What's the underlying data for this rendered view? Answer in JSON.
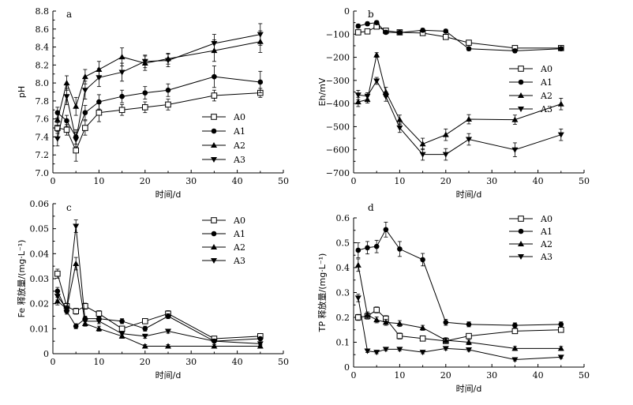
{
  "chart_data": [
    {
      "type": "line",
      "panel": "a",
      "xlabel": "时间/d",
      "ylabel": "pH",
      "xlim": [
        0,
        50
      ],
      "ylim": [
        7.0,
        8.8
      ],
      "xticks": [
        0,
        10,
        20,
        30,
        40,
        50
      ],
      "yticks": [
        7.0,
        7.2,
        7.4,
        7.6,
        7.8,
        8.0,
        8.2,
        8.4,
        8.6,
        8.8
      ],
      "ytick_labels": [
        "7.0",
        "7.2",
        "7.4",
        "7.6",
        "7.8",
        "8.0",
        "8.2",
        "8.4",
        "8.6",
        "8.8"
      ],
      "legend_position": "lower-right",
      "series": [
        {
          "name": "A0",
          "marker": "square-open",
          "x": [
            1,
            3,
            5,
            7,
            10,
            15,
            20,
            25,
            35,
            45
          ],
          "y": [
            7.5,
            7.48,
            7.25,
            7.5,
            7.67,
            7.7,
            7.73,
            7.76,
            7.86,
            7.89
          ],
          "err": [
            0.06,
            0.06,
            0.12,
            0.08,
            0.1,
            0.06,
            0.06,
            0.06,
            0.06,
            0.05
          ]
        },
        {
          "name": "A1",
          "marker": "circle",
          "x": [
            1,
            3,
            5,
            7,
            10,
            15,
            20,
            25,
            35,
            45
          ],
          "y": [
            7.67,
            7.58,
            7.4,
            7.67,
            7.79,
            7.85,
            7.89,
            7.92,
            8.07,
            8.01
          ],
          "err": [
            0.06,
            0.06,
            0.08,
            0.08,
            0.08,
            0.07,
            0.07,
            0.07,
            0.12,
            0.12
          ]
        },
        {
          "name": "A2",
          "marker": "triangle-up",
          "x": [
            1,
            3,
            5,
            7,
            10,
            15,
            20,
            25,
            35,
            45
          ],
          "y": [
            7.59,
            8.0,
            7.74,
            8.07,
            8.15,
            8.29,
            8.22,
            8.27,
            8.36,
            8.46
          ],
          "err": [
            0.07,
            0.08,
            0.1,
            0.08,
            0.09,
            0.1,
            0.08,
            0.06,
            0.12,
            0.12
          ]
        },
        {
          "name": "A3",
          "marker": "triangle-down",
          "x": [
            1,
            3,
            5,
            7,
            10,
            15,
            20,
            25,
            35,
            45
          ],
          "y": [
            7.38,
            7.85,
            7.37,
            7.92,
            8.06,
            8.12,
            8.24,
            8.25,
            8.44,
            8.54
          ],
          "err": [
            0.08,
            0.09,
            0.08,
            0.1,
            0.1,
            0.1,
            0.07,
            0.07,
            0.1,
            0.12
          ]
        }
      ]
    },
    {
      "type": "line",
      "panel": "b",
      "xlabel": "时间/d",
      "ylabel": "Eh/mV",
      "xlim": [
        0,
        50
      ],
      "ylim": [
        -700,
        0
      ],
      "xticks": [
        0,
        10,
        20,
        30,
        40,
        50
      ],
      "yticks": [
        0,
        -100,
        -200,
        -300,
        -400,
        -500,
        -600,
        -700
      ],
      "ytick_labels": [
        "0",
        "−100",
        "−200",
        "−300",
        "−400",
        "−500",
        "−600",
        "−700"
      ],
      "legend_position": "center-right",
      "series": [
        {
          "name": "A0",
          "marker": "square-open",
          "x": [
            1,
            3,
            5,
            7,
            10,
            15,
            20,
            25,
            35,
            45
          ],
          "y": [
            -92,
            -88,
            -67,
            -85,
            -92,
            -95,
            -112,
            -137,
            -160,
            -160
          ],
          "err": [
            8,
            8,
            10,
            8,
            8,
            8,
            8,
            8,
            8,
            8
          ]
        },
        {
          "name": "A1",
          "marker": "circle",
          "x": [
            1,
            3,
            5,
            7,
            10,
            15,
            20,
            25,
            35,
            45
          ],
          "y": [
            -65,
            -55,
            -50,
            -92,
            -93,
            -83,
            -87,
            -163,
            -172,
            -163
          ],
          "err": [
            8,
            8,
            8,
            8,
            8,
            8,
            8,
            8,
            8,
            8
          ]
        },
        {
          "name": "A2",
          "marker": "triangle-up",
          "x": [
            1,
            3,
            5,
            7,
            10,
            15,
            20,
            25,
            35,
            45
          ],
          "y": [
            -393,
            -383,
            -190,
            -350,
            -470,
            -575,
            -535,
            -468,
            -470,
            -402
          ],
          "err": [
            20,
            15,
            10,
            20,
            20,
            25,
            25,
            20,
            20,
            25
          ]
        },
        {
          "name": "A3",
          "marker": "triangle-down",
          "x": [
            1,
            3,
            5,
            7,
            10,
            15,
            20,
            25,
            35,
            45
          ],
          "y": [
            -363,
            -368,
            -302,
            -370,
            -505,
            -620,
            -620,
            -555,
            -600,
            -535
          ],
          "err": [
            20,
            15,
            15,
            20,
            20,
            25,
            25,
            25,
            30,
            25
          ]
        }
      ]
    },
    {
      "type": "line",
      "panel": "c",
      "xlabel": "时间/d",
      "ylabel": "Fe 释放量/(mg·L⁻¹)",
      "xlim": [
        0,
        50
      ],
      "ylim": [
        0,
        0.06
      ],
      "xticks": [
        0,
        10,
        20,
        30,
        40,
        50
      ],
      "yticks": [
        0,
        0.01,
        0.02,
        0.03,
        0.04,
        0.05,
        0.06
      ],
      "ytick_labels": [
        "0",
        "0.01",
        "0.02",
        "0.03",
        "0.04",
        "0.05",
        "0.06"
      ],
      "legend_position": "top-right",
      "series": [
        {
          "name": "A0",
          "marker": "square-open",
          "x": [
            1,
            3,
            5,
            7,
            10,
            15,
            20,
            25,
            35,
            45
          ],
          "y": [
            0.032,
            0.019,
            0.017,
            0.019,
            0.016,
            0.01,
            0.013,
            0.016,
            0.006,
            0.007
          ],
          "err": [
            0.0018,
            0.0012,
            0.0012,
            0.0012,
            0.0012,
            0.0008,
            0.0008,
            0.0012,
            0.0006,
            0.0006
          ]
        },
        {
          "name": "A1",
          "marker": "circle",
          "x": [
            1,
            3,
            5,
            7,
            10,
            15,
            20,
            25,
            35,
            45
          ],
          "y": [
            0.025,
            0.017,
            0.011,
            0.014,
            0.014,
            0.013,
            0.01,
            0.015,
            0.005,
            0.006
          ],
          "err": [
            0.0015,
            0.0012,
            0.001,
            0.001,
            0.001,
            0.001,
            0.001,
            0.001,
            0.0006,
            0.0006
          ]
        },
        {
          "name": "A2",
          "marker": "triangle-up",
          "x": [
            1,
            3,
            5,
            7,
            10,
            15,
            20,
            25,
            35,
            45
          ],
          "y": [
            0.021,
            0.018,
            0.036,
            0.012,
            0.01,
            0.007,
            0.003,
            0.003,
            0.003,
            0.003
          ],
          "err": [
            0.0015,
            0.0012,
            0.0025,
            0.001,
            0.001,
            0.0008,
            0.0006,
            0.0006,
            0.0006,
            0.0006
          ]
        },
        {
          "name": "A3",
          "marker": "triangle-down",
          "x": [
            1,
            3,
            5,
            7,
            10,
            15,
            20,
            25,
            35,
            45
          ],
          "y": [
            0.023,
            0.018,
            0.051,
            0.013,
            0.013,
            0.008,
            0.007,
            0.009,
            0.005,
            0.004
          ],
          "err": [
            0.0015,
            0.0012,
            0.0025,
            0.001,
            0.001,
            0.0008,
            0.0008,
            0.0008,
            0.0006,
            0.0006
          ]
        }
      ]
    },
    {
      "type": "line",
      "panel": "d",
      "xlabel": "时间/d",
      "ylabel": "TP 释放量/(mg·L⁻¹)",
      "xlim": [
        0,
        50
      ],
      "ylim": [
        0,
        0.6
      ],
      "xticks": [
        0,
        10,
        20,
        30,
        40,
        50
      ],
      "yticks": [
        0,
        0.1,
        0.2,
        0.3,
        0.4,
        0.5,
        0.6
      ],
      "ytick_labels": [
        "0",
        "0.1",
        "0.2",
        "0.3",
        "0.4",
        "0.5",
        "0.6"
      ],
      "legend_position": "top-right",
      "series": [
        {
          "name": "A0",
          "marker": "square-open",
          "x": [
            1,
            3,
            5,
            7,
            10,
            15,
            20,
            25,
            35,
            45
          ],
          "y": [
            0.2,
            0.205,
            0.23,
            0.195,
            0.125,
            0.115,
            0.105,
            0.125,
            0.145,
            0.15
          ],
          "err": [
            0.012,
            0.012,
            0.012,
            0.012,
            0.012,
            0.01,
            0.01,
            0.01,
            0.01,
            0.01
          ]
        },
        {
          "name": "A1",
          "marker": "circle",
          "x": [
            1,
            3,
            5,
            7,
            10,
            15,
            20,
            25,
            35,
            45
          ],
          "y": [
            0.47,
            0.48,
            0.485,
            0.553,
            0.475,
            0.432,
            0.18,
            0.172,
            0.168,
            0.172
          ],
          "err": [
            0.03,
            0.025,
            0.025,
            0.03,
            0.03,
            0.025,
            0.012,
            0.01,
            0.01,
            0.01
          ]
        },
        {
          "name": "A2",
          "marker": "triangle-up",
          "x": [
            1,
            3,
            5,
            7,
            10,
            15,
            20,
            25,
            35,
            45
          ],
          "y": [
            0.41,
            0.21,
            0.19,
            0.18,
            0.175,
            0.158,
            0.108,
            0.1,
            0.075,
            0.075
          ],
          "err": [
            0.025,
            0.012,
            0.012,
            0.012,
            0.012,
            0.01,
            0.01,
            0.01,
            0.008,
            0.008
          ]
        },
        {
          "name": "A3",
          "marker": "triangle-down",
          "x": [
            1,
            3,
            5,
            7,
            10,
            15,
            20,
            25,
            35,
            45
          ],
          "y": [
            0.278,
            0.065,
            0.06,
            0.072,
            0.072,
            0.06,
            0.075,
            0.07,
            0.03,
            0.04
          ],
          "err": [
            0.015,
            0.006,
            0.006,
            0.006,
            0.006,
            0.006,
            0.006,
            0.006,
            0.005,
            0.005
          ]
        }
      ]
    }
  ]
}
